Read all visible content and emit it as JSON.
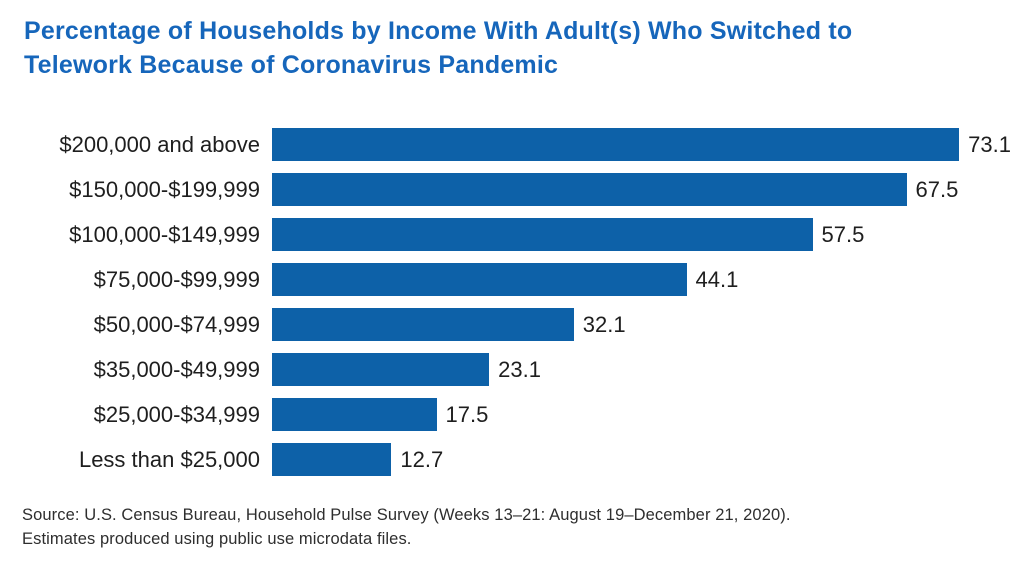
{
  "title": {
    "line1": "Percentage of Households by Income With Adult(s) Who Switched to",
    "line2": "Telework Because of Coronavirus Pandemic"
  },
  "source": {
    "line1": "Source: U.S. Census Bureau, Household Pulse Survey (Weeks 13–21: August 19–December 21, 2020).",
    "line2": "Estimates produced using public use microdata files."
  },
  "colors": {
    "bar": "#0d61a8",
    "title_text": "#1666bb",
    "label_text": "#1e1e1e",
    "source_text": "#2e2e2e",
    "background": "#ffffff"
  },
  "chart_data": {
    "type": "bar",
    "orientation": "horizontal",
    "title": "Percentage of Households by Income With Adult(s) Who Switched to Telework Because of Coronavirus Pandemic",
    "categories": [
      "$200,000 and above",
      "$150,000-$199,999",
      "$100,000-$149,999",
      "$75,000-$99,999",
      "$50,000-$74,999",
      "$35,000-$49,999",
      "$25,000-$34,999",
      "Less than $25,000"
    ],
    "values": [
      73.1,
      67.5,
      57.5,
      44.1,
      32.1,
      23.1,
      17.5,
      12.7
    ],
    "xlabel": "",
    "ylabel": "",
    "xlim": [
      0,
      80
    ],
    "grid": false,
    "legend": false,
    "value_labels": true
  }
}
